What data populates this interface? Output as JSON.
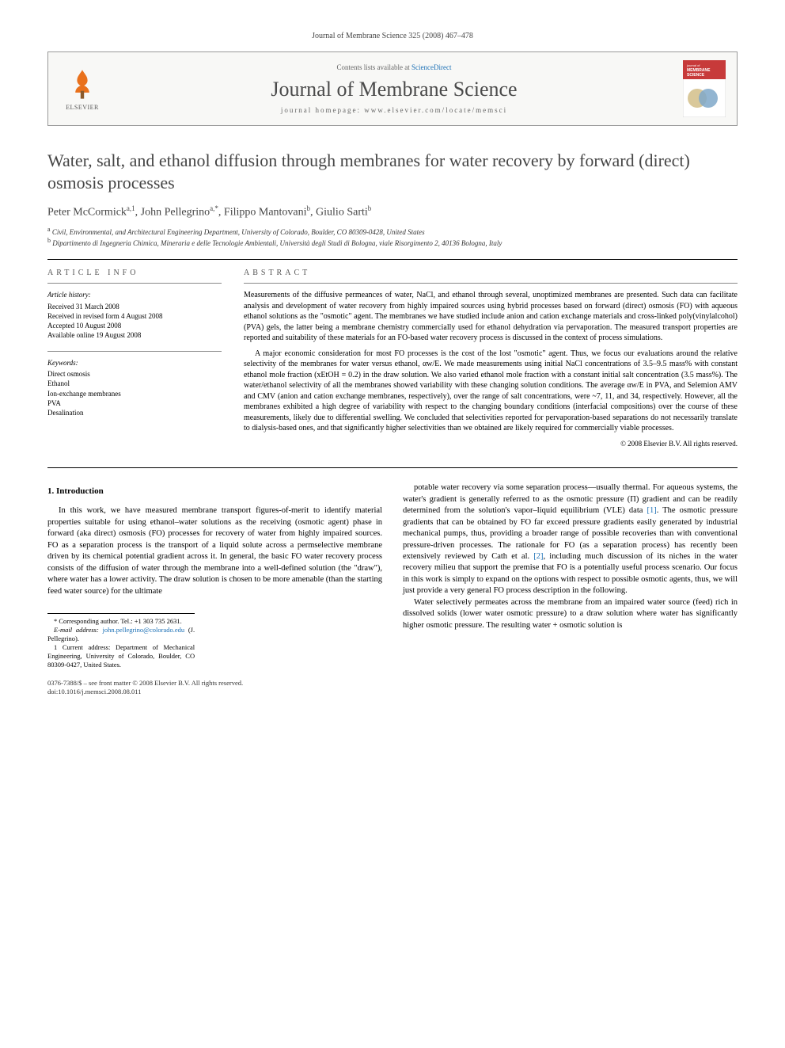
{
  "header_citation": "Journal of Membrane Science 325 (2008) 467–478",
  "masthead": {
    "contents_prefix": "Contents lists available at ",
    "contents_link": "ScienceDirect",
    "journal_name": "Journal of Membrane Science",
    "homepage_label": "journal homepage: www.elsevier.com/locate/memsci",
    "publisher_name": "ELSEVIER",
    "cover_title_1": "journal of",
    "cover_title_2": "MEMBRANE",
    "cover_title_3": "SCIENCE"
  },
  "article": {
    "title": "Water, salt, and ethanol diffusion through membranes for water recovery by forward (direct) osmosis processes",
    "authors_html": "Peter McCormick<sup>a,1</sup>, John Pellegrino<sup>a,*</sup>, Filippo Mantovani<sup>b</sup>, Giulio Sarti<sup>b</sup>",
    "affiliations": [
      "a Civil, Environmental, and Architectural Engineering Department, University of Colorado, Boulder, CO 80309-0428, United States",
      "b Dipartimento di Ingegneria Chimica, Mineraria e delle Tecnologie Ambientali, Università degli Studi di Bologna, viale Risorgimento 2, 40136 Bologna, Italy"
    ]
  },
  "info": {
    "section_label": "ARTICLE INFO",
    "history_title": "Article history:",
    "history": [
      "Received 31 March 2008",
      "Received in revised form 4 August 2008",
      "Accepted 10 August 2008",
      "Available online 19 August 2008"
    ],
    "keywords_title": "Keywords:",
    "keywords": [
      "Direct osmosis",
      "Ethanol",
      "Ion-exchange membranes",
      "PVA",
      "Desalination"
    ]
  },
  "abstract": {
    "section_label": "ABSTRACT",
    "paragraphs": [
      "Measurements of the diffusive permeances of water, NaCl, and ethanol through several, unoptimized membranes are presented. Such data can facilitate analysis and development of water recovery from highly impaired sources using hybrid processes based on forward (direct) osmosis (FO) with aqueous ethanol solutions as the \"osmotic\" agent. The membranes we have studied include anion and cation exchange materials and cross-linked poly(vinylalcohol) (PVA) gels, the latter being a membrane chemistry commercially used for ethanol dehydration via pervaporation. The measured transport properties are reported and suitability of these materials for an FO-based water recovery process is discussed in the context of process simulations.",
      "A major economic consideration for most FO processes is the cost of the lost \"osmotic\" agent. Thus, we focus our evaluations around the relative selectivity of the membranes for water versus ethanol, αw/E. We made measurements using initial NaCl concentrations of 3.5–9.5 mass% with constant ethanol mole fraction (xEtOH = 0.2) in the draw solution. We also varied ethanol mole fraction with a constant initial salt concentration (3.5 mass%). The water/ethanol selectivity of all the membranes showed variability with these changing solution conditions. The average αw/E in PVA, and Selemion AMV and CMV (anion and cation exchange membranes, respectively), over the range of salt concentrations, were ~7, 11, and 34, respectively. However, all the membranes exhibited a high degree of variability with respect to the changing boundary conditions (interfacial compositions) over the course of these measurements, likely due to differential swelling. We concluded that selectivities reported for pervaporation-based separations do not necessarily translate to dialysis-based ones, and that significantly higher selectivities than we obtained are likely required for commercially viable processes."
    ],
    "copyright": "© 2008 Elsevier B.V. All rights reserved."
  },
  "body": {
    "section_heading": "1. Introduction",
    "para1": "In this work, we have measured membrane transport figures-of-merit to identify material properties suitable for using ethanol–water solutions as the receiving (osmotic agent) phase in forward (aka direct) osmosis (FO) processes for recovery of water from highly impaired sources. FO as a separation process is the transport of a liquid solute across a permselective membrane driven by its chemical potential gradient across it. In general, the basic FO water recovery process consists of the diffusion of water through the membrane into a well-defined solution (the \"draw\"), where water has a lower activity. The draw solution is chosen to be more amenable (than the starting feed water source) for the ultimate",
    "para2_pre": "potable water recovery via some separation process—usually thermal. For aqueous systems, the water's gradient is generally referred to as the osmotic pressure (Π) gradient and can be readily determined from the solution's vapor–liquid equilibrium (VLE) data ",
    "para2_ref1": "[1]",
    "para2_mid": ". The osmotic pressure gradients that can be obtained by FO far exceed pressure gradients easily generated by industrial mechanical pumps, thus, providing a broader range of possible recoveries than with conventional pressure-driven processes. The rationale for FO (as a separation process) has recently been extensively reviewed by Cath et al. ",
    "para2_ref2": "[2]",
    "para2_post": ", including much discussion of its niches in the water recovery milieu that support the premise that FO is a potentially useful process scenario. Our focus in this work is simply to expand on the options with respect to possible osmotic agents, thus, we will just provide a very general FO process description in the following.",
    "para3": "Water selectively permeates across the membrane from an impaired water source (feed) rich in dissolved solids (lower water osmotic pressure) to a draw solution where water has significantly higher osmotic pressure. The resulting water + osmotic solution is"
  },
  "footnotes": {
    "corresponding": "* Corresponding author. Tel.: +1 303 735 2631.",
    "email_label": "E-mail address: ",
    "email": "john.pellegrino@colorado.edu",
    "email_who": " (J. Pellegrino).",
    "note1": "1 Current address: Department of Mechanical Engineering, University of Colorado, Boulder, CO 80309-0427, United States."
  },
  "footer": {
    "left_line1": "0376-7388/$ – see front matter © 2008 Elsevier B.V. All rights reserved.",
    "left_line2": "doi:10.1016/j.memsci.2008.08.011"
  }
}
